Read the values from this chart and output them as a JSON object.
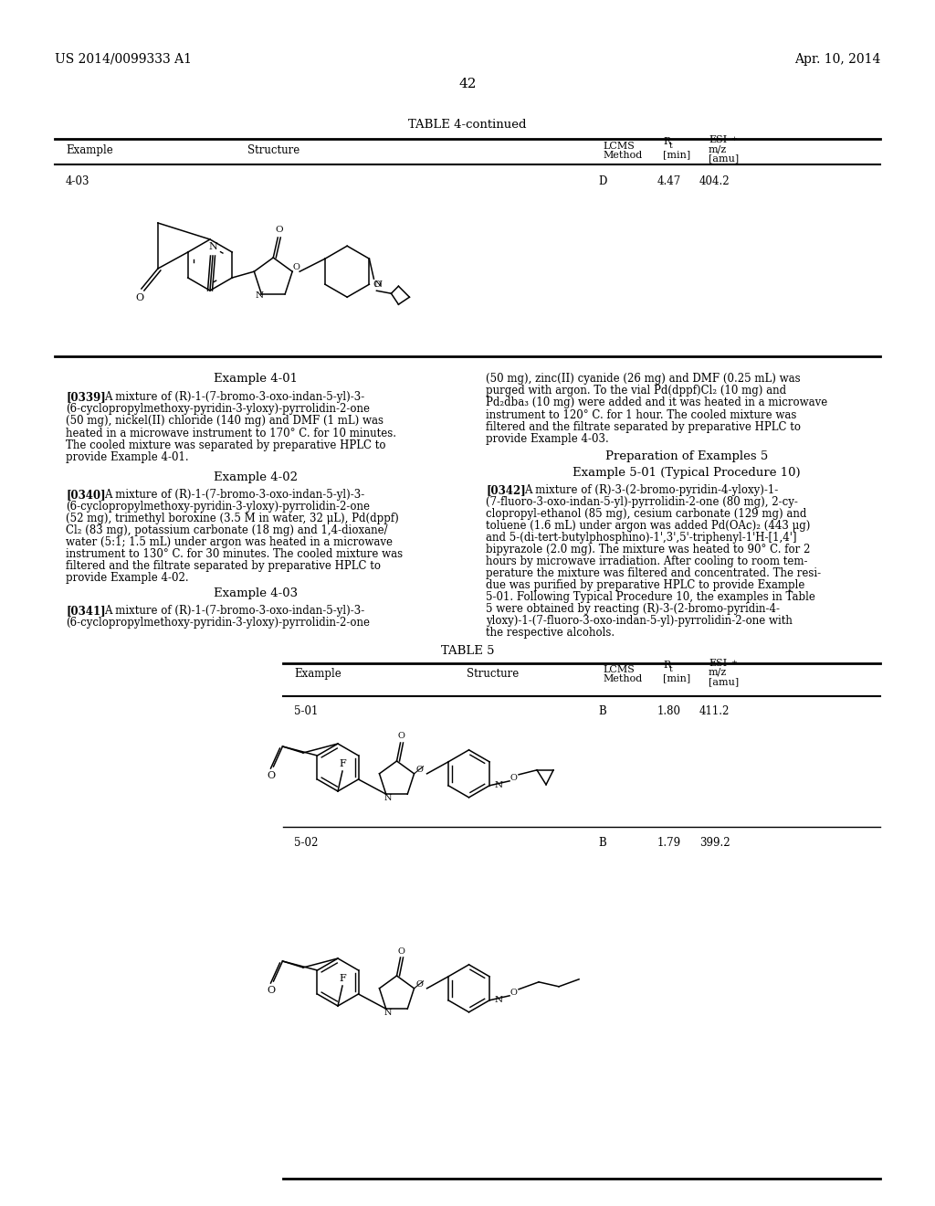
{
  "page_header_left": "US 2014/0099333 A1",
  "page_header_right": "Apr. 10, 2014",
  "page_number": "42",
  "table4_title": "TABLE 4-continued",
  "table4_row": {
    "example": "4-03",
    "lcms_method": "D",
    "rt": "4.47",
    "mz": "404.2"
  },
  "example_4_01_title": "Example 4-01",
  "example_4_01_para_num": "[0339]",
  "example_4_02_title": "Example 4-02",
  "example_4_02_para_num": "[0340]",
  "example_4_03_title": "Example 4-03",
  "example_4_03_para_num": "[0341]",
  "prep_examples_5_title": "Preparation of Examples 5",
  "example_5_01_title": "Example 5-01 (Typical Procedure 10)",
  "example_5_01_para_num": "[0342]",
  "table5_title": "TABLE 5",
  "table5_rows": [
    {
      "example": "5-01",
      "lcms_method": "B",
      "rt": "1.80",
      "mz": "411.2"
    },
    {
      "example": "5-02",
      "lcms_method": "B",
      "rt": "1.79",
      "mz": "399.2"
    }
  ],
  "bg_color": "#ffffff",
  "text_color": "#000000",
  "font_family": "DejaVu Serif"
}
